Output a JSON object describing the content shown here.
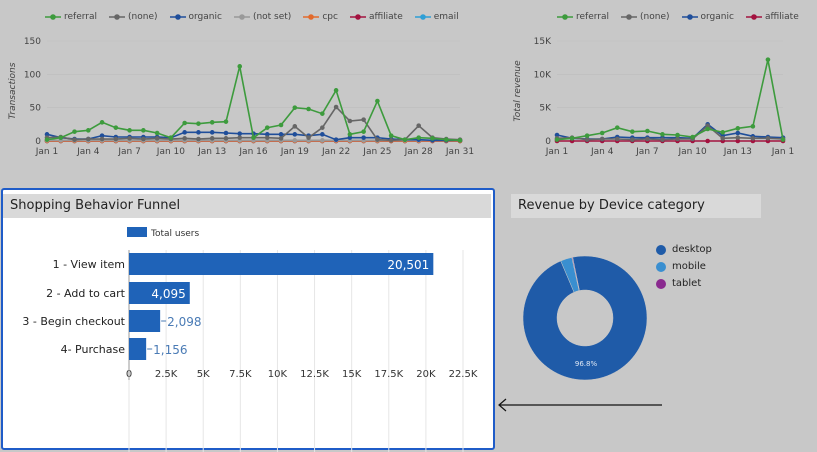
{
  "top_left_chart": {
    "legend": [
      {
        "name": "referral",
        "color": "#3d9b3d"
      },
      {
        "name": "(none)",
        "color": "#666666"
      },
      {
        "name": "organic",
        "color": "#1f4e9a"
      },
      {
        "name": "(not set)",
        "color": "#999999"
      },
      {
        "name": "cpc",
        "color": "#e26a2c"
      },
      {
        "name": "affiliate",
        "color": "#a3123f"
      },
      {
        "name": "email",
        "color": "#2e9fd6"
      }
    ],
    "ylabel": "Transactions",
    "yticks": [
      "150",
      "100",
      "50",
      "0"
    ],
    "xticks": [
      "Jan 1",
      "Jan 4",
      "Jan 7",
      "Jan 10",
      "Jan 13",
      "Jan 16",
      "Jan 19",
      "Jan 22",
      "Jan 25",
      "Jan 28",
      "Jan 31"
    ]
  },
  "top_right_chart": {
    "legend": [
      {
        "name": "referral",
        "color": "#3d9b3d"
      },
      {
        "name": "(none)",
        "color": "#666666"
      },
      {
        "name": "organic",
        "color": "#1f4e9a"
      },
      {
        "name": "affiliate",
        "color": "#a3123f"
      }
    ],
    "ylabel": "Total revenue",
    "yticks": [
      "15K",
      "10K",
      "5K",
      "0"
    ],
    "xticks": [
      "Jan 1",
      "Jan 4",
      "Jan 7",
      "Jan 10",
      "Jan 13",
      "Jan 1"
    ]
  },
  "funnel": {
    "title": "Shopping Behavior Funnel",
    "legend_label": "Total users",
    "bar_color": "#1f63b8"
  },
  "device": {
    "title": "Revenue by Device category",
    "legend": [
      {
        "name": "desktop",
        "color": "#1f5ba8"
      },
      {
        "name": "mobile",
        "color": "#3a8fd0"
      },
      {
        "name": "tablet",
        "color": "#8a2a8f"
      }
    ],
    "slice_label": "96.8%"
  },
  "chart_data": [
    {
      "type": "line",
      "ylabel": "Transactions",
      "ylim": [
        0,
        150
      ],
      "x": [
        "Jan 1",
        "Jan 2",
        "Jan 3",
        "Jan 4",
        "Jan 5",
        "Jan 6",
        "Jan 7",
        "Jan 8",
        "Jan 9",
        "Jan 10",
        "Jan 11",
        "Jan 12",
        "Jan 13",
        "Jan 14",
        "Jan 15",
        "Jan 16",
        "Jan 17",
        "Jan 18",
        "Jan 19",
        "Jan 20",
        "Jan 21",
        "Jan 22",
        "Jan 23",
        "Jan 24",
        "Jan 25",
        "Jan 26",
        "Jan 27",
        "Jan 28",
        "Jan 29",
        "Jan 30",
        "Jan 31"
      ],
      "series": [
        {
          "name": "referral",
          "values": [
            2,
            5,
            14,
            16,
            28,
            20,
            16,
            16,
            12,
            5,
            27,
            26,
            28,
            29,
            112,
            5,
            20,
            24,
            50,
            48,
            41,
            76,
            10,
            14,
            60,
            8,
            2,
            5,
            4,
            2,
            1
          ]
        },
        {
          "name": "(none)",
          "values": [
            5,
            6,
            2,
            3,
            3,
            3,
            4,
            3,
            4,
            3,
            4,
            3,
            4,
            4,
            5,
            5,
            5,
            4,
            22,
            5,
            20,
            51,
            30,
            32,
            2,
            1,
            2,
            23,
            5,
            3,
            2
          ]
        },
        {
          "name": "organic",
          "values": [
            10,
            5,
            3,
            3,
            8,
            6,
            6,
            6,
            6,
            5,
            13,
            13,
            13,
            12,
            11,
            11,
            10,
            10,
            10,
            8,
            10,
            2,
            5,
            5,
            5,
            3,
            2,
            2,
            1,
            1,
            1
          ]
        },
        {
          "name": "(not set)",
          "values": [
            1,
            1,
            1,
            1,
            1,
            1,
            1,
            1,
            1,
            1,
            1,
            1,
            1,
            1,
            1,
            1,
            1,
            1,
            1,
            1,
            1,
            1,
            1,
            1,
            1,
            1,
            1,
            1,
            1,
            1,
            1
          ]
        },
        {
          "name": "cpc",
          "values": [
            0,
            0,
            0,
            0,
            0,
            0,
            0,
            0,
            0,
            0,
            0,
            0,
            0,
            0,
            0,
            0,
            0,
            0,
            0,
            0,
            0,
            0,
            0,
            0,
            0,
            0,
            0,
            0,
            0,
            0,
            0
          ]
        },
        {
          "name": "affiliate",
          "values": [
            0,
            0,
            0,
            0,
            0,
            0,
            0,
            0,
            0,
            0,
            0,
            0,
            0,
            0,
            0,
            0,
            0,
            0,
            0,
            0,
            0,
            0,
            0,
            0,
            0,
            0,
            0,
            0,
            0,
            0,
            0
          ]
        },
        {
          "name": "email",
          "values": [
            0,
            0,
            0,
            0,
            0,
            0,
            0,
            0,
            0,
            0,
            0,
            0,
            0,
            0,
            0,
            0,
            0,
            0,
            0,
            0,
            0,
            0,
            0,
            0,
            0,
            0,
            0,
            0,
            0,
            0,
            0
          ]
        }
      ]
    },
    {
      "type": "line",
      "ylabel": "Total revenue",
      "ylim": [
        0,
        15000
      ],
      "x": [
        "Jan 1",
        "Jan 2",
        "Jan 3",
        "Jan 4",
        "Jan 5",
        "Jan 6",
        "Jan 7",
        "Jan 8",
        "Jan 9",
        "Jan 10",
        "Jan 11",
        "Jan 12",
        "Jan 13",
        "Jan 14",
        "Jan 15",
        "Jan 16"
      ],
      "series": [
        {
          "name": "referral",
          "values": [
            200,
            400,
            800,
            1200,
            2000,
            1400,
            1500,
            1000,
            900,
            600,
            1800,
            1300,
            1900,
            2200,
            12200,
            200
          ]
        },
        {
          "name": "(none)",
          "values": [
            400,
            500,
            200,
            300,
            300,
            200,
            300,
            200,
            300,
            300,
            2300,
            400,
            500,
            400,
            400,
            300
          ]
        },
        {
          "name": "organic",
          "values": [
            900,
            400,
            300,
            300,
            600,
            500,
            500,
            500,
            500,
            400,
            2500,
            800,
            1200,
            700,
            600,
            500
          ]
        },
        {
          "name": "affiliate",
          "values": [
            0,
            0,
            0,
            0,
            0,
            0,
            0,
            0,
            0,
            0,
            0,
            0,
            0,
            0,
            0,
            0
          ]
        }
      ]
    },
    {
      "type": "bar",
      "orientation": "horizontal",
      "title": "Shopping Behavior Funnel",
      "categories": [
        "1 - View item",
        "2 - Add to cart",
        "3 - Begin checkout",
        "4- Purchase"
      ],
      "series": [
        {
          "name": "Total users",
          "values": [
            20501,
            4095,
            2098,
            1156
          ]
        }
      ],
      "value_labels": [
        "20,501",
        "4,095",
        "2,098",
        "1,156"
      ],
      "xticks": [
        "0",
        "2.5K",
        "5K",
        "7.5K",
        "10K",
        "12.5K",
        "15K",
        "17.5K",
        "20K",
        "22.5K"
      ],
      "xlim": [
        0,
        22500
      ]
    },
    {
      "type": "pie",
      "title": "Revenue by Device category",
      "categories": [
        "desktop",
        "mobile",
        "tablet"
      ],
      "values": [
        96.8,
        3.0,
        0.2
      ],
      "slice_labels": [
        "96.8%"
      ]
    }
  ]
}
